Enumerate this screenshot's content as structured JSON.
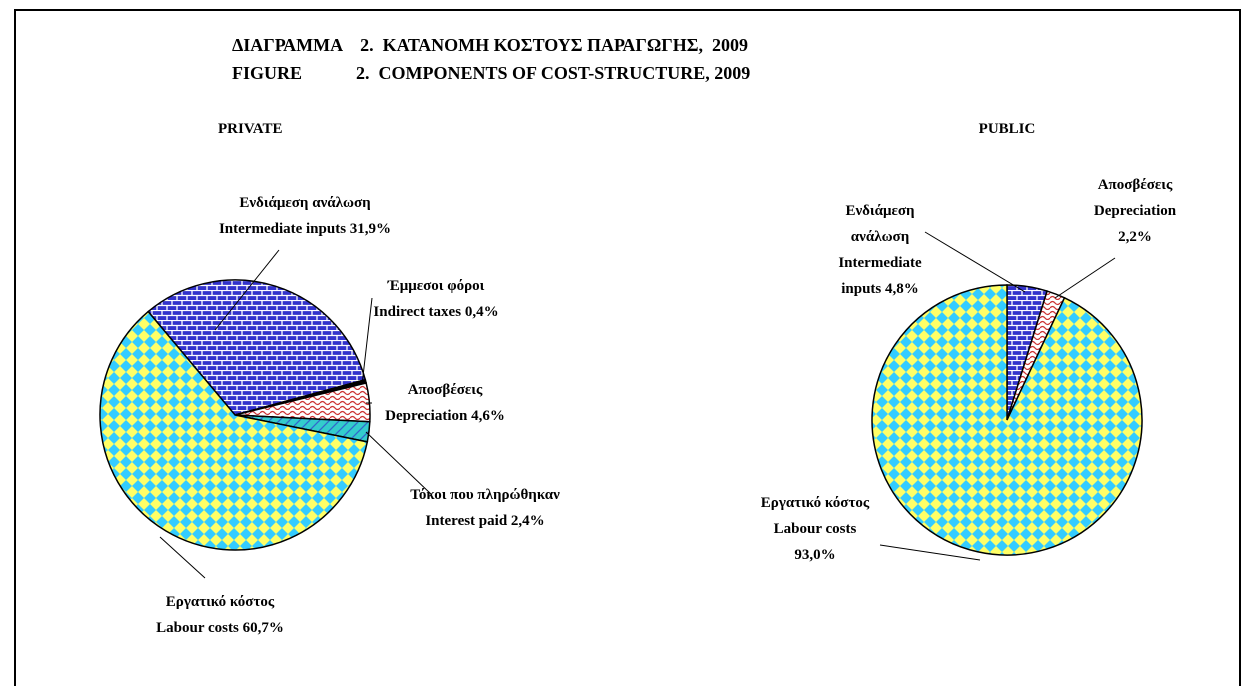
{
  "title": "ΔΙΑΓΡΑΜΜΑ    2.  ΚΑΤΑΝΟΜΗ ΚΟΣΤΟΥΣ ΠΑΡΑΓΩΓΗΣ,  2009",
  "subtitle": "FIGURE            2.  COMPONENTS OF COST-STRUCTURE, 2009",
  "chart_data": [
    {
      "type": "pie",
      "title": "PRIVATE",
      "startangle": -40,
      "categories": [
        "Ενδιάμεση ανάλωση",
        "Έμμεσοι φόροι",
        "Αποσβέσεις",
        "Τόκοι που πληρώθηκαν",
        "Εργατικό κόστος"
      ],
      "categories_en": [
        "Intermediate inputs",
        "Indirect taxes",
        "Depreciation",
        "Interest paid",
        "Labour costs"
      ],
      "values": [
        31.9,
        0.4,
        4.6,
        2.4,
        60.7
      ],
      "value_labels": [
        "31,9%",
        "0,4%",
        "4,6%",
        "2,4%",
        "60,7%"
      ],
      "colors": [
        "#3333cc",
        "#000000",
        "#ffffff",
        "#33cccc",
        "#ffff66"
      ],
      "patterns": [
        "brick",
        "solid",
        "wave",
        "diagonal",
        "diamond"
      ],
      "pattern_colors": [
        "#ffffff",
        "#000000",
        "#cc3333",
        "#3366cc",
        "#33ccff"
      ]
    },
    {
      "type": "pie",
      "title": "PUBLIC",
      "startangle": 0,
      "categories": [
        "Ενδιάμεση ανάλωση",
        "Αποσβέσεις",
        "Εργατικό κόστος"
      ],
      "categories_en": [
        "Intermediate inputs",
        "Depreciation",
        "Labour costs"
      ],
      "values": [
        4.8,
        2.2,
        93.0
      ],
      "value_labels": [
        "4,8%",
        "2,2%",
        "93,0%"
      ],
      "colors": [
        "#3333cc",
        "#ffffff",
        "#ffff66"
      ],
      "patterns": [
        "brick",
        "wave",
        "diamond"
      ],
      "pattern_colors": [
        "#ffffff",
        "#cc3333",
        "#33ccff"
      ]
    }
  ]
}
